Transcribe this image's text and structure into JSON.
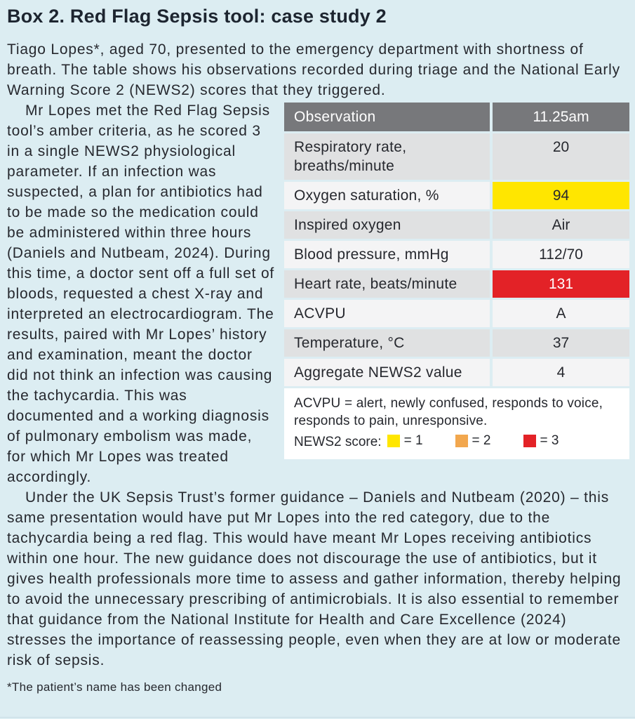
{
  "title": "Box 2. Red Flag Sepsis tool: case study 2",
  "intro": "Tiago Lopes*, aged 70, presented to the emergency department with shortness of breath. The table shows his observations recorded during triage and the National Early Warning Score 2 (NEWS2) scores that they triggered.",
  "paragraphs": {
    "p1": "Mr Lopes met the Red Flag Sepsis tool’s amber criteria, as he scored 3 in a single NEWS2 physiological parameter. If an infection was suspected, a plan for antibiotics had to be made so the medication could be administered within three hours (Daniels and Nutbeam, 2024). During this time, a doctor sent off a full set of bloods, requested a chest X-ray and interpreted an electrocardiogram. The results, paired with Mr Lopes’ history and examination, meant the doctor did not think an infection was causing the tachycardia. This was documented and a working diagnosis of pulmonary embolism was made, for which Mr Lopes was treated accordingly.",
    "p2": "Under the UK Sepsis Trust’s former guidance – Daniels and Nutbeam (2020) – this same presentation would have put Mr Lopes into the red category, due to the tachycardia being a red flag. This would have meant Mr Lopes receiving antibiotics within one hour. The new guidance does not discourage the use of antibiotics, but it gives health professionals more time to assess and gather information, thereby helping to avoid the unnecessary prescribing of antimicrobials. It is also essential to remember that guidance from the National Institute for Health and Care Excellence (2024) stresses the importance of reassessing people, even when they are at low or moderate risk of sepsis."
  },
  "footnote": "*The patient’s name has been changed",
  "table": {
    "headers": [
      "Observation",
      "11.25am"
    ],
    "rows": [
      {
        "label": "Respiratory rate, breaths/minute",
        "value": "20",
        "highlight": "none"
      },
      {
        "label": "Oxygen saturation, %",
        "value": "94",
        "highlight": "yellow"
      },
      {
        "label": "Inspired oxygen",
        "value": "Air",
        "highlight": "none"
      },
      {
        "label": "Blood pressure, mmHg",
        "value": "112/70",
        "highlight": "none"
      },
      {
        "label": "Heart rate, beats/minute",
        "value": "131",
        "highlight": "red"
      },
      {
        "label": "ACVPU",
        "value": "A",
        "highlight": "none"
      },
      {
        "label": "Temperature, °C",
        "value": "37",
        "highlight": "none"
      },
      {
        "label": "Aggregate NEWS2 value",
        "value": "4",
        "highlight": "none"
      }
    ],
    "note_acvpu": "ACVPU = alert, newly confused, responds to voice, responds to pain, unresponsive.",
    "legend": {
      "label": "NEWS2 score:",
      "items": [
        {
          "swatch": "#ffe600",
          "text": "= 1"
        },
        {
          "swatch": "#f2a74e",
          "text": "= 2"
        },
        {
          "swatch": "#e32227",
          "text": "= 3"
        }
      ]
    }
  },
  "colors": {
    "panel_background": "#dcedf2",
    "header_gray": "#77787b",
    "row_gray": "#e0e1e2",
    "row_light": "#f4f4f5",
    "highlight_yellow": "#ffe600",
    "highlight_red": "#e32227",
    "note_background": "#ffffff"
  }
}
